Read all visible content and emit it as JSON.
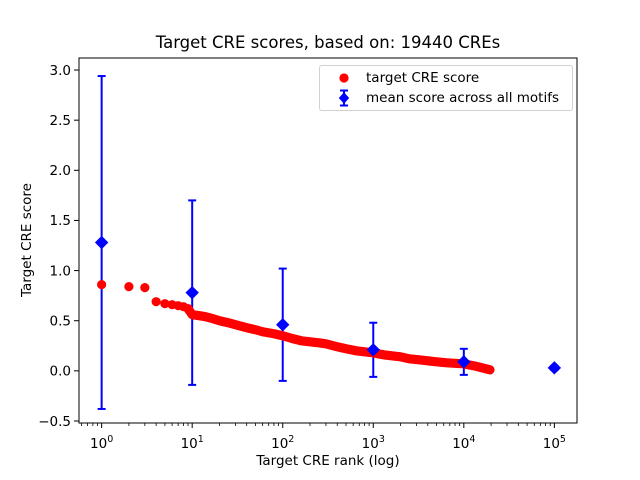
{
  "chart_data": {
    "type": "scatter",
    "title": "Target CRE scores, based on: 19440 CREs",
    "xlabel": "Target CRE rank (log)",
    "ylabel": "Target CRE score",
    "x_scale": "log",
    "grid": false,
    "xlim_log10": [
      -0.25,
      5.25
    ],
    "ylim": [
      -0.52,
      3.12
    ],
    "x_ticks": [
      {
        "value": 1,
        "base": "10",
        "exp": "0"
      },
      {
        "value": 10,
        "base": "10",
        "exp": "1"
      },
      {
        "value": 100,
        "base": "10",
        "exp": "2"
      },
      {
        "value": 1000,
        "base": "10",
        "exp": "3"
      },
      {
        "value": 10000,
        "base": "10",
        "exp": "4"
      },
      {
        "value": 100000,
        "base": "10",
        "exp": "5"
      }
    ],
    "y_ticks": [
      {
        "value": 3.0,
        "label": "3.0"
      },
      {
        "value": 2.5,
        "label": "2.5"
      },
      {
        "value": 2.0,
        "label": "2.0"
      },
      {
        "value": 1.5,
        "label": "1.5"
      },
      {
        "value": 1.0,
        "label": "1.0"
      },
      {
        "value": 0.5,
        "label": "0.5"
      },
      {
        "value": 0.0,
        "label": "0.0"
      },
      {
        "value": -0.5,
        "label": "−0.5"
      }
    ],
    "legend": {
      "position": "upper right",
      "entries": [
        {
          "label": "target CRE score",
          "marker": "circle",
          "color": "#ff0000"
        },
        {
          "label": "mean score across all motifs",
          "marker": "diamond-errorbar",
          "color": "#0000ff"
        }
      ]
    },
    "series": [
      {
        "name": "target CRE score",
        "type": "scatter",
        "color": "#ff0000",
        "marker": "circle",
        "points": [
          [
            1,
            0.86
          ],
          [
            2,
            0.84
          ],
          [
            3,
            0.83
          ],
          [
            4,
            0.69
          ],
          [
            5,
            0.67
          ],
          [
            6,
            0.66
          ],
          [
            7,
            0.65
          ],
          [
            8,
            0.64
          ],
          [
            9,
            0.62
          ],
          [
            10,
            0.56
          ],
          [
            12,
            0.55
          ],
          [
            14,
            0.54
          ],
          [
            17,
            0.52
          ],
          [
            20,
            0.5
          ],
          [
            25,
            0.48
          ],
          [
            30,
            0.46
          ],
          [
            40,
            0.43
          ],
          [
            50,
            0.41
          ],
          [
            60,
            0.39
          ],
          [
            80,
            0.37
          ],
          [
            100,
            0.35
          ],
          [
            130,
            0.32
          ],
          [
            160,
            0.3
          ],
          [
            200,
            0.29
          ],
          [
            250,
            0.28
          ],
          [
            300,
            0.27
          ],
          [
            400,
            0.24
          ],
          [
            500,
            0.22
          ],
          [
            650,
            0.2
          ],
          [
            800,
            0.19
          ],
          [
            1000,
            0.18
          ],
          [
            1300,
            0.16
          ],
          [
            1600,
            0.15
          ],
          [
            2000,
            0.14
          ],
          [
            2500,
            0.12
          ],
          [
            3200,
            0.11
          ],
          [
            4000,
            0.1
          ],
          [
            5000,
            0.09
          ],
          [
            6500,
            0.08
          ],
          [
            8000,
            0.075
          ],
          [
            10000,
            0.07
          ],
          [
            13000,
            0.05
          ],
          [
            16000,
            0.03
          ],
          [
            19440,
            0.01
          ]
        ]
      },
      {
        "name": "mean score across all motifs",
        "type": "errorbar",
        "color": "#0000ff",
        "marker": "diamond",
        "points": [
          {
            "x": 1,
            "mean": 1.28,
            "err": 1.66
          },
          {
            "x": 10,
            "mean": 0.78,
            "err": 0.92
          },
          {
            "x": 100,
            "mean": 0.46,
            "err": 0.56
          },
          {
            "x": 1000,
            "mean": 0.21,
            "err": 0.27
          },
          {
            "x": 10000,
            "mean": 0.09,
            "err": 0.13
          },
          {
            "x": 100000,
            "mean": 0.03,
            "err": 0.02
          }
        ]
      }
    ]
  }
}
